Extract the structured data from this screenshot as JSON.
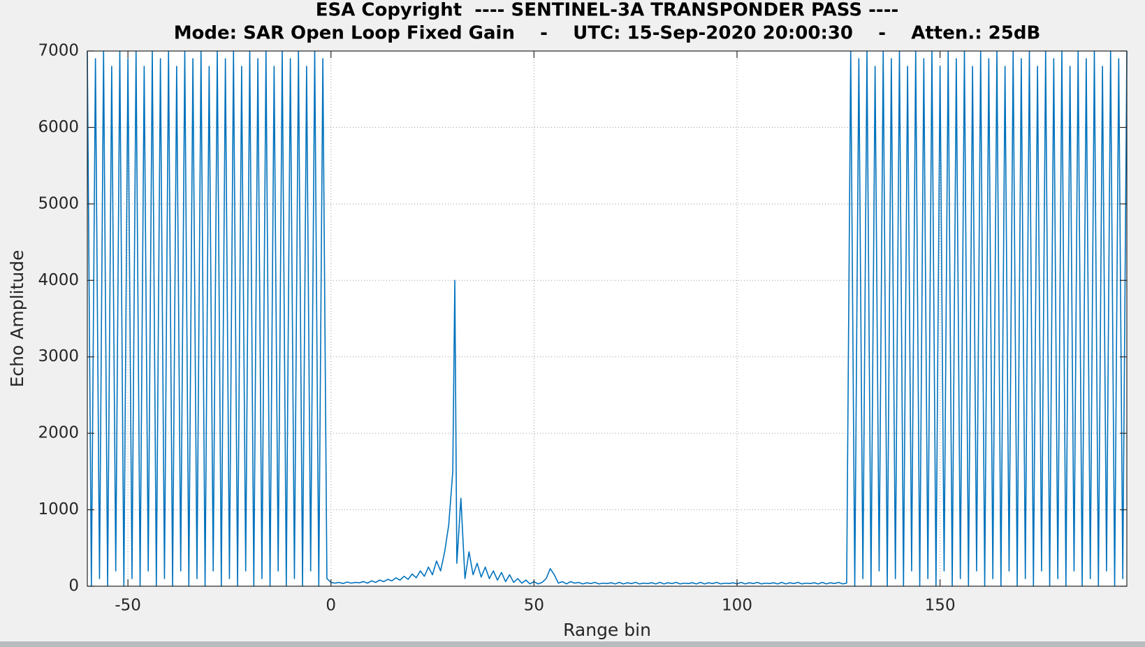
{
  "chart_data": {
    "type": "line",
    "title": [
      "ESA Copyright  ---- SENTINEL-3A TRANSPONDER PASS ----",
      "Mode: SAR Open Loop Fixed Gain    -    UTC: 15-Sep-2020 20:00:30    -    Atten.: 25dB"
    ],
    "xlabel": "Range bin",
    "ylabel": "Echo Amplitude",
    "xlim": [
      -60,
      196
    ],
    "ylim": [
      0,
      7000
    ],
    "xticks": [
      -50,
      0,
      50,
      100,
      150
    ],
    "yticks": [
      0,
      1000,
      2000,
      3000,
      4000,
      5000,
      6000,
      7000
    ],
    "grid": true,
    "series": [
      {
        "color": "#0072bd",
        "x": [
          -60,
          -59,
          -58,
          -57,
          -56,
          -55,
          -54,
          -53,
          -52,
          -51,
          -50,
          -49,
          -48,
          -47,
          -46,
          -45,
          -44,
          -43,
          -42,
          -41,
          -40,
          -39,
          -38,
          -37,
          -36,
          -35,
          -34,
          -33,
          -32,
          -31,
          -30,
          -29,
          -28,
          -27,
          -26,
          -25,
          -24,
          -23,
          -22,
          -21,
          -20,
          -19,
          -18,
          -17,
          -16,
          -15,
          -14,
          -13,
          -12,
          -11,
          -10,
          -9,
          -8,
          -7,
          -6,
          -5,
          -4,
          -3,
          -2,
          -1,
          0,
          1,
          2,
          3,
          4,
          5,
          6,
          7,
          8,
          9,
          10,
          11,
          12,
          13,
          14,
          15,
          16,
          17,
          18,
          19,
          20,
          21,
          22,
          23,
          24,
          25,
          26,
          27,
          28,
          29,
          30,
          30.5,
          31,
          32,
          33,
          34,
          35,
          36,
          37,
          38,
          39,
          40,
          41,
          42,
          43,
          44,
          45,
          46,
          47,
          48,
          49,
          50,
          51,
          52,
          53,
          54,
          55,
          56,
          57,
          58,
          59,
          60,
          61,
          62,
          63,
          64,
          65,
          66,
          67,
          68,
          69,
          70,
          71,
          72,
          73,
          74,
          75,
          76,
          77,
          78,
          79,
          80,
          81,
          82,
          83,
          84,
          85,
          86,
          87,
          88,
          89,
          90,
          91,
          92,
          93,
          94,
          95,
          96,
          97,
          98,
          99,
          100,
          101,
          102,
          103,
          104,
          105,
          106,
          107,
          108,
          109,
          110,
          111,
          112,
          113,
          114,
          115,
          116,
          117,
          118,
          119,
          120,
          121,
          122,
          123,
          124,
          125,
          126,
          127,
          128,
          129,
          130,
          131,
          132,
          133,
          134,
          135,
          136,
          137,
          138,
          139,
          140,
          141,
          142,
          143,
          144,
          145,
          146,
          147,
          148,
          149,
          150,
          151,
          152,
          153,
          154,
          155,
          156,
          157,
          158,
          159,
          160,
          161,
          162,
          163,
          164,
          165,
          166,
          167,
          168,
          169,
          170,
          171,
          172,
          173,
          174,
          175,
          176,
          177,
          178,
          179,
          180,
          181,
          182,
          183,
          184,
          185,
          186,
          187,
          188,
          189,
          190,
          191,
          192,
          193,
          194,
          195,
          196
        ],
        "values": [
          7000,
          0,
          6900,
          100,
          7000,
          0,
          6800,
          200,
          7000,
          0,
          6900,
          100,
          7000,
          0,
          6800,
          200,
          7000,
          0,
          6900,
          100,
          7000,
          0,
          6800,
          200,
          7000,
          0,
          6900,
          100,
          7000,
          0,
          6800,
          200,
          7000,
          0,
          6900,
          100,
          7000,
          0,
          6800,
          200,
          7000,
          0,
          6900,
          100,
          7000,
          0,
          6800,
          200,
          7000,
          0,
          6900,
          100,
          7000,
          0,
          6800,
          200,
          7000,
          0,
          6900,
          100,
          50,
          40,
          50,
          35,
          55,
          40,
          50,
          45,
          60,
          40,
          70,
          50,
          80,
          60,
          90,
          70,
          110,
          80,
          130,
          90,
          160,
          110,
          200,
          130,
          250,
          150,
          330,
          200,
          450,
          800,
          1500,
          4000,
          300,
          1150,
          100,
          450,
          150,
          300,
          120,
          250,
          100,
          200,
          80,
          180,
          60,
          150,
          50,
          100,
          40,
          80,
          30,
          60,
          30,
          50,
          100,
          230,
          150,
          40,
          60,
          30,
          60,
          40,
          50,
          30,
          45,
          35,
          50,
          30,
          40,
          35,
          45,
          30,
          50,
          30,
          45,
          35,
          50,
          30,
          40,
          35,
          45,
          30,
          50,
          30,
          45,
          35,
          50,
          30,
          40,
          35,
          45,
          30,
          50,
          30,
          45,
          35,
          50,
          30,
          40,
          35,
          45,
          30,
          50,
          30,
          45,
          35,
          50,
          30,
          40,
          35,
          45,
          30,
          50,
          30,
          45,
          35,
          50,
          30,
          40,
          35,
          45,
          30,
          50,
          30,
          45,
          35,
          50,
          30,
          40,
          7000,
          0,
          6900,
          100,
          7000,
          0,
          6800,
          200,
          7000,
          0,
          6900,
          100,
          7000,
          0,
          6800,
          200,
          7000,
          0,
          6900,
          100,
          7000,
          0,
          6800,
          200,
          7000,
          0,
          6900,
          100,
          7000,
          0,
          6800,
          200,
          7000,
          0,
          6900,
          100,
          7000,
          0,
          6800,
          200,
          7000,
          0,
          6900,
          100,
          7000,
          0,
          6800,
          200,
          7000,
          0,
          6900,
          100,
          7000,
          0,
          6800,
          200,
          7000,
          0,
          6900,
          100,
          7000,
          0,
          6800,
          200,
          7000,
          0,
          6900,
          100,
          7000
        ]
      }
    ]
  }
}
